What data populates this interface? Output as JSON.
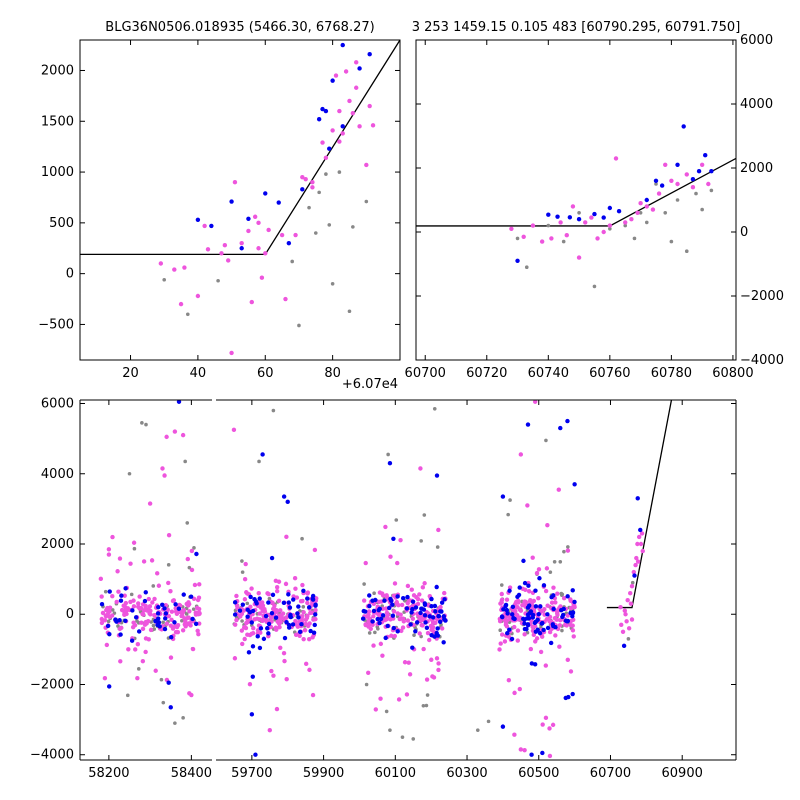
{
  "figure": {
    "title_left": "BLG36N0506.018935 (5466.30, 6768.27)",
    "title_right": "3 253 1459.15 0.105 483 [60790.295, 60791.750]"
  },
  "colors": {
    "blue": "#0000ee",
    "magenta": "#ee55dd",
    "gray": "#888888",
    "model": "#000000"
  },
  "chart_data": [
    {
      "type": "scatter",
      "panel": "top-left",
      "title": "BLG36N0506.018935 (5466.30, 6768.27)",
      "x_offset_label": "+6.07e4",
      "xlim": [
        5,
        100
      ],
      "ylim": [
        -850,
        2300
      ],
      "xticks": [
        20,
        40,
        60,
        80
      ],
      "yticks": [
        -500,
        0,
        500,
        1000,
        1500,
        2000
      ],
      "model": {
        "x": [
          5,
          60,
          100
        ],
        "y": [
          190,
          190,
          2300
        ]
      },
      "series": [
        {
          "color": "blue",
          "points": [
            [
              40,
              530
            ],
            [
              44,
              470
            ],
            [
              50,
              710
            ],
            [
              53,
              250
            ],
            [
              55,
              540
            ],
            [
              60,
              790
            ],
            [
              64,
              700
            ],
            [
              67,
              300
            ],
            [
              71,
              830
            ],
            [
              76,
              1520
            ],
            [
              77,
              1620
            ],
            [
              78,
              1600
            ],
            [
              79,
              1230
            ],
            [
              80,
              1900
            ],
            [
              83,
              2250
            ],
            [
              88,
              2020
            ],
            [
              91,
              2160
            ],
            [
              83,
              1450
            ]
          ]
        },
        {
          "color": "magenta",
          "points": [
            [
              29,
              100
            ],
            [
              33,
              40
            ],
            [
              35,
              -300
            ],
            [
              36,
              60
            ],
            [
              40,
              -220
            ],
            [
              42,
              470
            ],
            [
              43,
              240
            ],
            [
              47,
              200
            ],
            [
              48,
              280
            ],
            [
              49,
              130
            ],
            [
              50,
              -780
            ],
            [
              51,
              900
            ],
            [
              53,
              300
            ],
            [
              55,
              420
            ],
            [
              56,
              -280
            ],
            [
              57,
              560
            ],
            [
              58,
              250
            ],
            [
              58,
              500
            ],
            [
              59,
              -40
            ],
            [
              60,
              200
            ],
            [
              61,
              430
            ],
            [
              65,
              380
            ],
            [
              66,
              -250
            ],
            [
              69,
              380
            ],
            [
              71,
              950
            ],
            [
              72,
              930
            ],
            [
              74,
              850
            ],
            [
              74,
              900
            ],
            [
              77,
              1290
            ],
            [
              78,
              1140
            ],
            [
              80,
              1410
            ],
            [
              82,
              1300
            ],
            [
              82,
              1600
            ],
            [
              83,
              1380
            ],
            [
              84,
              1990
            ],
            [
              85,
              1700
            ],
            [
              86,
              1580
            ],
            [
              87,
              2080
            ],
            [
              87,
              1830
            ],
            [
              90,
              1070
            ],
            [
              91,
              1650
            ],
            [
              92,
              1460
            ],
            [
              81,
              1950
            ],
            [
              88,
              1450
            ]
          ]
        },
        {
          "color": "gray",
          "points": [
            [
              30,
              -60
            ],
            [
              37,
              -400
            ],
            [
              46,
              -70
            ],
            [
              68,
              120
            ],
            [
              70,
              -510
            ],
            [
              73,
              650
            ],
            [
              75,
              400
            ],
            [
              78,
              980
            ],
            [
              79,
              480
            ],
            [
              80,
              -100
            ],
            [
              82,
              1000
            ],
            [
              85,
              -370
            ],
            [
              86,
              460
            ],
            [
              90,
              710
            ],
            [
              76,
              800
            ]
          ]
        }
      ]
    },
    {
      "type": "scatter",
      "panel": "top-right",
      "xlim": [
        60697,
        60801
      ],
      "ylim": [
        -4000,
        6000
      ],
      "xticks": [
        60700,
        60720,
        60740,
        60760,
        60780,
        60800
      ],
      "yticks": [
        -4000,
        -2000,
        0,
        2000,
        4000,
        6000
      ],
      "model": {
        "x": [
          60697,
          60760,
          60801
        ],
        "y": [
          190,
          190,
          2300
        ]
      },
      "series": [
        {
          "color": "blue",
          "points": [
            [
              60730,
              -900
            ],
            [
              60740,
              540
            ],
            [
              60743,
              480
            ],
            [
              60747,
              460
            ],
            [
              60750,
              400
            ],
            [
              60755,
              560
            ],
            [
              60758,
              450
            ],
            [
              60760,
              750
            ],
            [
              60763,
              650
            ],
            [
              60772,
              1000
            ],
            [
              60775,
              1600
            ],
            [
              60777,
              1450
            ],
            [
              60782,
              2100
            ],
            [
              60784,
              3300
            ],
            [
              60787,
              1650
            ],
            [
              60789,
              1900
            ],
            [
              60791,
              2400
            ],
            [
              60793,
              1900
            ]
          ]
        },
        {
          "color": "magenta",
          "points": [
            [
              60728,
              100
            ],
            [
              60732,
              -150
            ],
            [
              60735,
              200
            ],
            [
              60738,
              -300
            ],
            [
              60741,
              -200
            ],
            [
              60744,
              300
            ],
            [
              60746,
              -100
            ],
            [
              60748,
              800
            ],
            [
              60750,
              -800
            ],
            [
              60752,
              300
            ],
            [
              60754,
              450
            ],
            [
              60756,
              -200
            ],
            [
              60758,
              0
            ],
            [
              60760,
              200
            ],
            [
              60762,
              2300
            ],
            [
              60765,
              300
            ],
            [
              60767,
              400
            ],
            [
              60770,
              900
            ],
            [
              60772,
              800
            ],
            [
              60774,
              700
            ],
            [
              60776,
              1200
            ],
            [
              60778,
              2100
            ],
            [
              60780,
              1600
            ],
            [
              60782,
              1500
            ],
            [
              60785,
              1800
            ],
            [
              60787,
              1400
            ],
            [
              60790,
              2100
            ],
            [
              60792,
              1500
            ],
            [
              60769,
              600
            ]
          ]
        },
        {
          "color": "gray",
          "points": [
            [
              60730,
              -200
            ],
            [
              60733,
              -1100
            ],
            [
              60740,
              200
            ],
            [
              60745,
              -300
            ],
            [
              60750,
              600
            ],
            [
              60755,
              -1700
            ],
            [
              60760,
              100
            ],
            [
              60765,
              200
            ],
            [
              60768,
              -200
            ],
            [
              60770,
              600
            ],
            [
              60772,
              300
            ],
            [
              60775,
              1500
            ],
            [
              60778,
              600
            ],
            [
              60780,
              -300
            ],
            [
              60782,
              1000
            ],
            [
              60785,
              -600
            ],
            [
              60788,
              1200
            ],
            [
              60790,
              700
            ],
            [
              60793,
              1300
            ]
          ]
        }
      ]
    },
    {
      "type": "scatter",
      "panel": "bottom",
      "xlim": [
        58130,
        61050
      ],
      "ylim": [
        -4150,
        6100
      ],
      "xticks": [
        58200,
        58400,
        59700,
        59900,
        60100,
        60300,
        60500,
        60700,
        60900
      ],
      "yticks": [
        -4000,
        -2000,
        0,
        2000,
        4000,
        6000
      ],
      "model": {
        "x": [
          60690,
          60760,
          60870
        ],
        "y": [
          190,
          190,
          6100
        ]
      },
      "seasons": [
        [
          58180,
          58420
        ],
        [
          59650,
          59880
        ],
        [
          60010,
          60240
        ],
        [
          60390,
          60600
        ],
        [
          60728,
          60795
        ]
      ],
      "outliers": [
        [
          58200,
          1850,
          "magenta"
        ],
        [
          58250,
          4000,
          "gray"
        ],
        [
          58280,
          5450,
          "gray"
        ],
        [
          58290,
          5400,
          "gray"
        ],
        [
          58300,
          3150,
          "magenta"
        ],
        [
          58330,
          4150,
          "magenta"
        ],
        [
          58335,
          3950,
          "magenta"
        ],
        [
          58340,
          5050,
          "magenta"
        ],
        [
          58360,
          5200,
          "magenta"
        ],
        [
          58370,
          6050,
          "blue"
        ],
        [
          58380,
          5100,
          "magenta"
        ],
        [
          58390,
          2600,
          "gray"
        ],
        [
          58385,
          4350,
          "gray"
        ],
        [
          58350,
          -2650,
          "blue"
        ],
        [
          58345,
          -1950,
          "blue"
        ],
        [
          58380,
          -2950,
          "gray"
        ],
        [
          58395,
          -2250,
          "magenta"
        ],
        [
          58400,
          -2300,
          "magenta"
        ],
        [
          58360,
          -3100,
          "gray"
        ],
        [
          59650,
          5250,
          "magenta"
        ],
        [
          59720,
          4350,
          "gray"
        ],
        [
          59730,
          4550,
          "blue"
        ],
        [
          59700,
          -2850,
          "blue"
        ],
        [
          59710,
          -4000,
          "blue"
        ],
        [
          59760,
          5800,
          "gray"
        ],
        [
          59790,
          3350,
          "blue"
        ],
        [
          59800,
          3200,
          "blue"
        ],
        [
          59840,
          2150,
          "gray"
        ],
        [
          59750,
          -3300,
          "magenta"
        ],
        [
          59770,
          -2700,
          "magenta"
        ],
        [
          60080,
          4550,
          "gray"
        ],
        [
          60085,
          4300,
          "blue"
        ],
        [
          60085,
          -3300,
          "gray"
        ],
        [
          60150,
          -3550,
          "gray"
        ],
        [
          60120,
          -3500,
          "gray"
        ],
        [
          60170,
          4150,
          "magenta"
        ],
        [
          60210,
          5850,
          "gray"
        ],
        [
          60220,
          2400,
          "magenta"
        ],
        [
          60020,
          -2000,
          "gray"
        ],
        [
          60190,
          -2300,
          "gray"
        ],
        [
          60400,
          3350,
          "blue"
        ],
        [
          60420,
          3250,
          "gray"
        ],
        [
          60450,
          4550,
          "magenta"
        ],
        [
          60470,
          5400,
          "blue"
        ],
        [
          60490,
          6050,
          "magenta"
        ],
        [
          60520,
          4950,
          "gray"
        ],
        [
          60540,
          -3150,
          "magenta"
        ],
        [
          60560,
          5300,
          "blue"
        ],
        [
          60580,
          5500,
          "blue"
        ],
        [
          60600,
          3700,
          "blue"
        ],
        [
          60400,
          -3200,
          "blue"
        ],
        [
          60450,
          -3850,
          "magenta"
        ],
        [
          60480,
          -4000,
          "blue"
        ],
        [
          60510,
          -3950,
          "blue"
        ],
        [
          60530,
          -3250,
          "magenta"
        ],
        [
          60330,
          -3300,
          "gray"
        ],
        [
          60360,
          -3050,
          "gray"
        ],
        [
          60520,
          -2950,
          "magenta"
        ]
      ],
      "clusters": [
        {
          "x_range": [
            58180,
            58420
          ],
          "center": 0,
          "spread": 330,
          "wings": 1300,
          "counts": {
            "magenta": 190,
            "blue": 40,
            "gray": 55
          }
        },
        {
          "x_range": [
            59650,
            59880
          ],
          "center": 0,
          "spread": 330,
          "wings": 1400,
          "counts": {
            "magenta": 190,
            "blue": 60,
            "gray": 55
          }
        },
        {
          "x_range": [
            60010,
            60240
          ],
          "center": 0,
          "spread": 340,
          "wings": 1400,
          "counts": {
            "magenta": 190,
            "blue": 70,
            "gray": 55
          }
        },
        {
          "x_range": [
            60390,
            60600
          ],
          "center": 0,
          "spread": 340,
          "wings": 1500,
          "counts": {
            "magenta": 200,
            "blue": 80,
            "gray": 60
          }
        }
      ],
      "rise_points": [
        [
          60728,
          200,
          "magenta"
        ],
        [
          60730,
          -300,
          "magenta"
        ],
        [
          60735,
          -500,
          "magenta"
        ],
        [
          60738,
          -900,
          "blue"
        ],
        [
          60740,
          100,
          "magenta"
        ],
        [
          60742,
          0,
          "magenta"
        ],
        [
          60745,
          -200,
          "magenta"
        ],
        [
          60748,
          400,
          "magenta"
        ],
        [
          60750,
          -700,
          "gray"
        ],
        [
          60752,
          -400,
          "magenta"
        ],
        [
          60755,
          600,
          "magenta"
        ],
        [
          60757,
          300,
          "magenta"
        ],
        [
          60760,
          800,
          "magenta"
        ],
        [
          60762,
          900,
          "gray"
        ],
        [
          60765,
          1200,
          "magenta"
        ],
        [
          60767,
          1100,
          "blue"
        ],
        [
          60770,
          1400,
          "magenta"
        ],
        [
          60772,
          1600,
          "magenta"
        ],
        [
          60775,
          2000,
          "magenta"
        ],
        [
          60777,
          1500,
          "magenta"
        ],
        [
          60780,
          2200,
          "magenta"
        ],
        [
          60783,
          2400,
          "blue"
        ],
        [
          60785,
          2000,
          "magenta"
        ],
        [
          60788,
          2300,
          "magenta"
        ],
        [
          60776,
          3300,
          "blue"
        ],
        [
          60790,
          1800,
          "magenta"
        ],
        [
          60760,
          -150,
          "magenta"
        ]
      ]
    }
  ]
}
